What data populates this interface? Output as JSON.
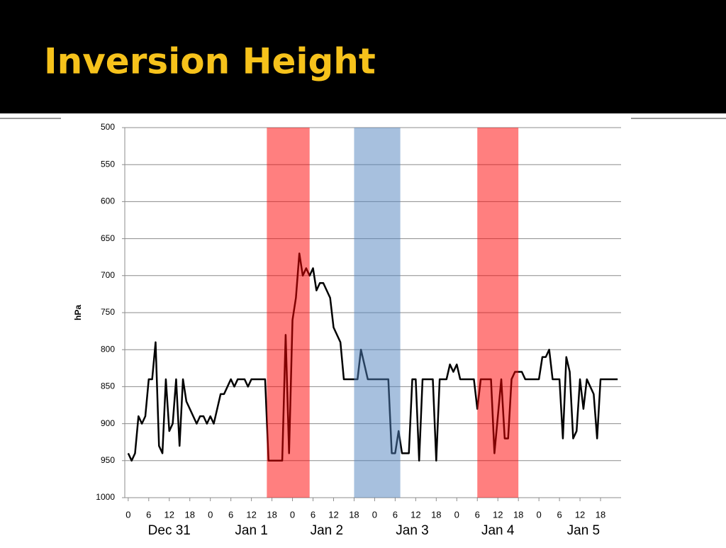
{
  "chart_data": {
    "type": "line",
    "title": "Inversion Height",
    "ylabel": "hPa",
    "color": "#000000",
    "x": [
      0,
      1,
      2,
      3,
      4,
      5,
      6,
      7,
      8,
      9,
      10,
      11,
      12,
      13,
      14,
      15,
      16,
      17,
      20,
      21,
      22,
      23,
      24,
      25,
      26,
      27,
      28,
      30,
      31,
      32,
      34,
      35,
      36,
      40,
      41,
      45,
      46,
      47,
      48,
      49,
      50,
      51,
      52,
      53,
      54,
      55,
      56,
      57,
      59,
      60,
      62,
      63,
      67,
      68,
      70,
      76,
      77,
      78,
      79,
      80,
      82,
      83,
      84,
      85,
      86,
      89,
      90,
      91,
      93,
      94,
      95,
      96,
      97,
      101,
      102,
      103,
      106,
      107,
      109,
      110,
      111,
      112,
      113,
      115,
      116,
      120,
      121,
      122,
      123,
      124,
      126,
      127,
      128,
      129,
      130,
      131,
      132,
      133,
      134,
      136,
      137,
      138,
      143
    ],
    "values": [
      940,
      950,
      940,
      890,
      900,
      890,
      840,
      840,
      790,
      930,
      940,
      840,
      910,
      900,
      840,
      930,
      840,
      870,
      900,
      890,
      890,
      900,
      890,
      900,
      880,
      860,
      860,
      840,
      850,
      840,
      840,
      850,
      840,
      840,
      950,
      950,
      780,
      940,
      760,
      730,
      670,
      700,
      690,
      700,
      690,
      720,
      710,
      710,
      730,
      770,
      790,
      840,
      840,
      800,
      840,
      840,
      940,
      940,
      910,
      940,
      940,
      840,
      840,
      950,
      840,
      840,
      950,
      840,
      840,
      820,
      830,
      820,
      840,
      840,
      880,
      840,
      840,
      940,
      840,
      920,
      920,
      840,
      830,
      830,
      840,
      840,
      810,
      810,
      800,
      840,
      840,
      920,
      810,
      830,
      920,
      910,
      840,
      880,
      840,
      860,
      920,
      840,
      840
    ],
    "xlim": [
      -1,
      144
    ],
    "ylim": [
      500,
      1000
    ],
    "y_inverted": true,
    "yticks": [
      500,
      550,
      600,
      650,
      700,
      750,
      800,
      850,
      900,
      950,
      1000
    ],
    "xticks": [
      0,
      6,
      12,
      18,
      {
        "value": 24,
        "label": "0"
      },
      {
        "value": 30,
        "label": "6"
      },
      {
        "value": 36,
        "label": "12"
      },
      {
        "value": 42,
        "label": "18"
      },
      {
        "value": 48,
        "label": "0"
      },
      {
        "value": 54,
        "label": "6"
      },
      {
        "value": 60,
        "label": "12"
      },
      {
        "value": 66,
        "label": "18"
      },
      {
        "value": 72,
        "label": "0"
      },
      {
        "value": 78,
        "label": "6"
      },
      {
        "value": 84,
        "label": "12"
      },
      {
        "value": 90,
        "label": "18"
      },
      {
        "value": 96,
        "label": "0"
      },
      {
        "value": 102,
        "label": "6"
      },
      {
        "value": 108,
        "label": "12"
      },
      {
        "value": 114,
        "label": "18"
      },
      {
        "value": 120,
        "label": "0"
      },
      {
        "value": 126,
        "label": "6"
      },
      {
        "value": 132,
        "label": "12"
      },
      {
        "value": 138,
        "label": "18"
      }
    ],
    "day_ticks": [
      {
        "value": 12,
        "label": "Dec 31"
      },
      {
        "value": 36,
        "label": "Jan 1"
      },
      {
        "value": 58,
        "label": "Jan 2"
      },
      {
        "value": 83,
        "label": "Jan 3"
      },
      {
        "value": 108,
        "label": "Jan 4"
      },
      {
        "value": 133,
        "label": "Jan 5"
      }
    ],
    "bands": [
      {
        "start": 40.5,
        "end": 53,
        "color": "#ff0000"
      },
      {
        "start": 66,
        "end": 79.5,
        "color": "#4f81bd"
      },
      {
        "start": 102,
        "end": 114,
        "color": "#ff0000"
      }
    ],
    "grid": true
  }
}
